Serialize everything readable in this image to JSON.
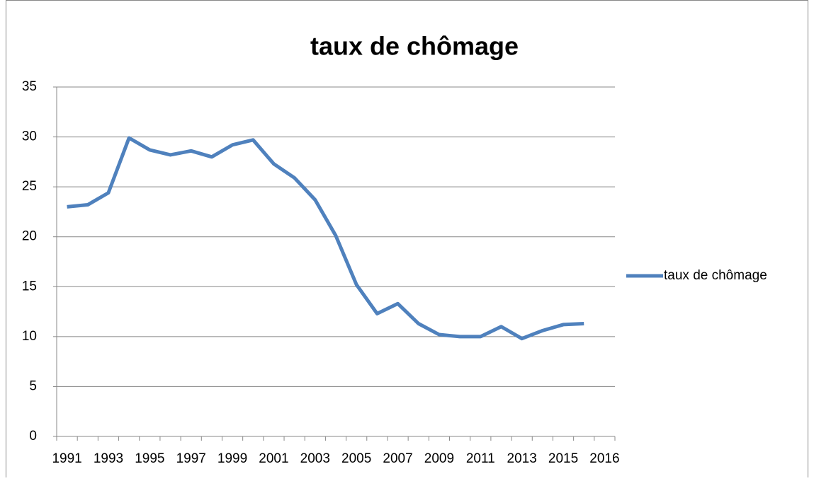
{
  "chart_data": {
    "type": "line",
    "title": "taux de chômage",
    "categories": [
      "1991",
      null,
      "1993",
      null,
      "1995",
      null,
      "1997",
      null,
      "1999",
      null,
      "2001",
      null,
      "2003",
      null,
      "2005",
      null,
      "2007",
      null,
      "2009",
      null,
      "2011",
      null,
      "2013",
      null,
      "2015",
      null,
      "2016"
    ],
    "series": [
      {
        "name": "taux de chômage",
        "color": "#4f81bd",
        "values": [
          23.0,
          23.2,
          24.4,
          29.9,
          28.7,
          28.2,
          28.6,
          28.0,
          29.2,
          29.7,
          27.3,
          25.9,
          23.7,
          20.1,
          15.2,
          12.3,
          13.3,
          11.3,
          10.2,
          10.0,
          10.0,
          11.0,
          9.8,
          10.6,
          11.2,
          11.3,
          null
        ]
      }
    ],
    "ylim": [
      0,
      35
    ],
    "yticks": [
      0,
      5,
      10,
      15,
      20,
      25,
      30,
      35
    ],
    "grid": true,
    "legend": "right"
  }
}
